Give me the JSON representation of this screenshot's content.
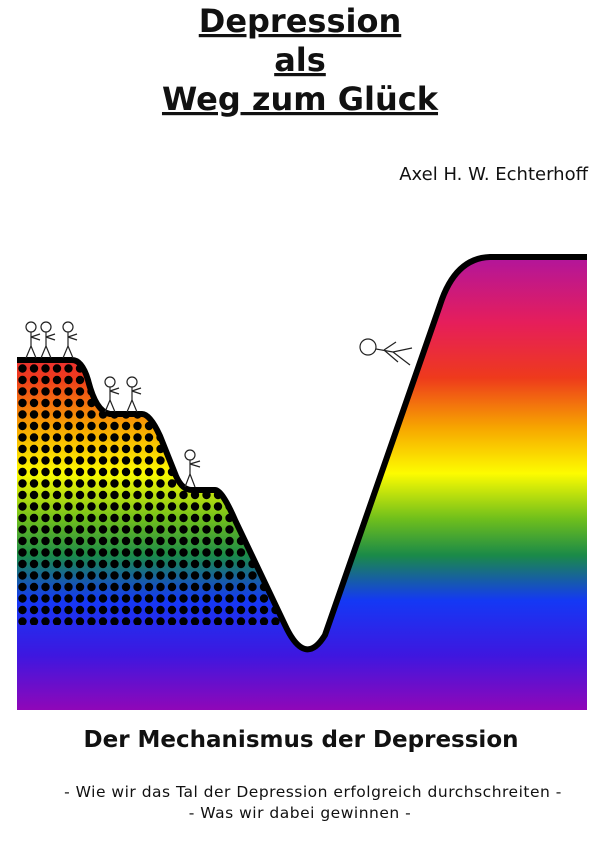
{
  "header": {
    "title_lines": [
      "Depression",
      "als",
      "Weg zum Glück"
    ],
    "author": "Axel H. W. Echterhoff"
  },
  "footer": {
    "subtitle": "Der Mechanismus der Depression",
    "tagline_lines": [
      "- Wie wir das Tal der Depression erfolgreich durchschreiten -",
      "- Was wir dabei gewinnen -"
    ]
  }
}
